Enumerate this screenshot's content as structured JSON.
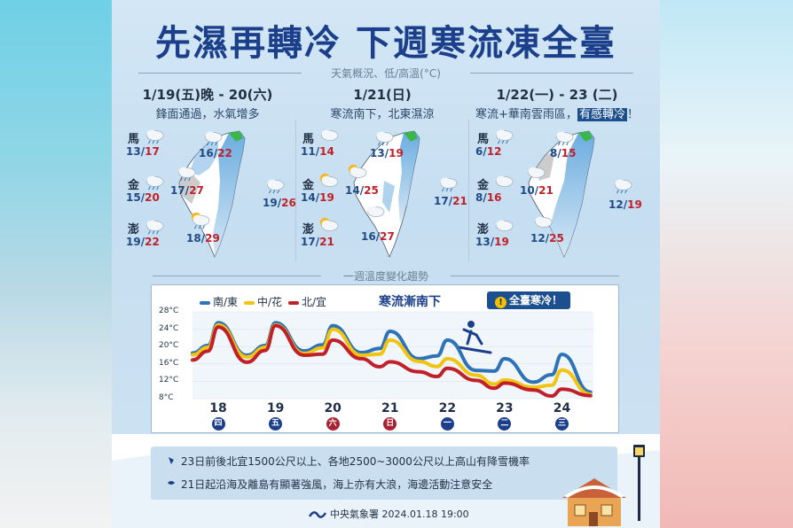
{
  "title": "先濕再轉冷 下週寒流凍全臺",
  "subtitle": "天氣概況、低/高溫(°C)",
  "panels": [
    {
      "date": "1/19(五)晚 - 20(六)",
      "desc": "鋒面通過，水氣增多",
      "stations": {
        "ma": {
          "label": "馬",
          "low": "13",
          "high": "17",
          "icon": "rain-cloud-icon"
        },
        "jin": {
          "label": "金",
          "low": "15",
          "high": "20",
          "icon": "rain-cloud-icon"
        },
        "peng": {
          "label": "澎",
          "low": "19",
          "high": "22",
          "icon": "rain-cloud-icon"
        }
      },
      "regions": {
        "north": {
          "low": "16",
          "high": "22",
          "icon": "rain-cloud-icon"
        },
        "central": {
          "low": "17",
          "high": "27",
          "icon": "rain-cloud-icon"
        },
        "south": {
          "low": "18",
          "high": "29",
          "icon": "sun-rain-cloud-icon"
        },
        "east": {
          "low": "19",
          "high": "26",
          "icon": "rain-cloud-icon"
        }
      }
    },
    {
      "date": "1/21(日)",
      "desc": "寒流南下，北東濕涼",
      "stations": {
        "ma": {
          "label": "馬",
          "low": "11",
          "high": "14",
          "icon": "cloud-icon"
        },
        "jin": {
          "label": "金",
          "low": "14",
          "high": "19",
          "icon": "sun-cloud-icon"
        },
        "peng": {
          "label": "澎",
          "low": "17",
          "high": "21",
          "icon": "sun-cloud-icon"
        }
      },
      "regions": {
        "north": {
          "low": "13",
          "high": "19",
          "icon": "rain-cloud-icon"
        },
        "central": {
          "low": "14",
          "high": "25",
          "icon": "sun-cloud-icon"
        },
        "south": {
          "low": "16",
          "high": "27",
          "icon": "cloud-icon"
        },
        "east": {
          "low": "17",
          "high": "21",
          "icon": "rain-cloud-icon"
        }
      }
    },
    {
      "date": "1/22(一) - 23 (二)",
      "desc_pre": "寒流+華南雲雨區，",
      "desc_hl": "有感轉冷",
      "desc_post": "！",
      "stations": {
        "ma": {
          "label": "馬",
          "low": "6",
          "high": "12",
          "icon": "rain-cloud-icon"
        },
        "jin": {
          "label": "金",
          "low": "8",
          "high": "16",
          "icon": "cloud-icon"
        },
        "peng": {
          "label": "澎",
          "low": "13",
          "high": "19",
          "icon": "cloud-icon"
        }
      },
      "regions": {
        "north": {
          "low": "8",
          "high": "15",
          "icon": "rain-cloud-icon"
        },
        "central": {
          "low": "10",
          "high": "21",
          "icon": "cloud-icon"
        },
        "south": {
          "low": "12",
          "high": "25",
          "icon": "cloud-icon"
        },
        "east": {
          "low": "12",
          "high": "19",
          "icon": "rain-cloud-icon"
        }
      }
    }
  ],
  "trend_title": "一週溫度變化趨勢",
  "chart_data": {
    "type": "line",
    "title": "寒流漸南下",
    "alert": "全臺寒冷！",
    "yticks": [
      "28°C",
      "24°C",
      "20°C",
      "16°C",
      "12°C",
      "8°C"
    ],
    "ylim": [
      8,
      28
    ],
    "days": [
      {
        "day": "18",
        "weekday": "四",
        "weekend": false
      },
      {
        "day": "19",
        "weekday": "五",
        "weekend": false
      },
      {
        "day": "20",
        "weekday": "六",
        "weekend": true
      },
      {
        "day": "21",
        "weekday": "日",
        "weekend": true
      },
      {
        "day": "22",
        "weekday": "一",
        "weekend": false
      },
      {
        "day": "23",
        "weekday": "二",
        "weekend": false
      },
      {
        "day": "24",
        "weekday": "三",
        "weekend": false
      }
    ],
    "series": [
      {
        "name": "南/東",
        "color": "#2e73b8",
        "peaks": [
          25.5,
          25.5,
          24.8,
          23.5,
          21.5,
          17.2,
          18.2
        ],
        "troughs": [
          18,
          19,
          18.6,
          17.2,
          14.5,
          11.8,
          9.5
        ]
      },
      {
        "name": "中/花",
        "color": "#f1c40f",
        "peaks": [
          25,
          25,
          24,
          21.5,
          17.2,
          12.3,
          14.6
        ],
        "troughs": [
          17.6,
          18.4,
          18,
          16.6,
          13.4,
          10.6,
          9
        ]
      },
      {
        "name": "北/宜",
        "color": "#c0202a",
        "peaks": [
          24.5,
          24.8,
          21.5,
          16.5,
          15.0,
          11.6,
          10.2
        ],
        "troughs": [
          16.4,
          18,
          17.2,
          14.2,
          12.2,
          10,
          8.7
        ]
      }
    ]
  },
  "notes": [
    "23日前後北宜1500公尺以上、各地2500~3000公尺以上高山有降雪機率",
    "21日起沿海及離島有顯著強風，海上亦有大浪，海邊活動注意安全"
  ],
  "footer": "中央氣象署 2024.01.18 19:00",
  "colors": {
    "title": "#1b3f8a",
    "high": "#c0202a",
    "low": "#1e4a86"
  }
}
